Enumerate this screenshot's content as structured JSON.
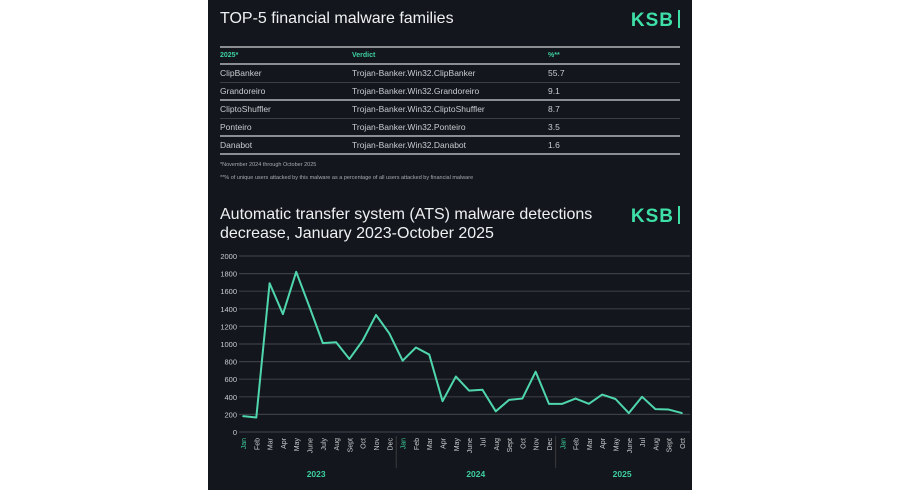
{
  "table_section": {
    "title": "TOP-5 financial malware families",
    "logo": "KSB",
    "headers": [
      "2025*",
      "Verdict",
      "%**"
    ],
    "rows": [
      [
        "ClipBanker",
        "Trojan-Banker.Win32.ClipBanker",
        "55.7"
      ],
      [
        "Grandoreiro",
        "Trojan-Banker.Win32.Grandoreiro",
        "9.1"
      ],
      [
        "CliptoShuffler",
        "Trojan-Banker.Win32.CliptoShuffler",
        "8.7"
      ],
      [
        "Ponteiro",
        "Trojan-Banker.Win32.Ponteiro",
        "3.5"
      ],
      [
        "Danabot",
        "Trojan-Banker.Win32.Danabot",
        "1.6"
      ]
    ],
    "footnotes": [
      "*November 2024 through October 2025",
      "**% of unique users attacked by this malware as a percentage of all users attacked by financial malware"
    ]
  },
  "chart_section": {
    "title_line1": "Automatic transfer system (ATS) malware detections",
    "title_line2": "decrease, January 2023-October 2025",
    "logo": "KSB"
  },
  "chart_data": {
    "type": "line",
    "title": "Automatic transfer system (ATS) malware detections decrease, January 2023-October 2025",
    "ylim": [
      0,
      2000
    ],
    "yticks": [
      0,
      200,
      400,
      600,
      800,
      1000,
      1200,
      1400,
      1600,
      1800,
      2000
    ],
    "grid": true,
    "line_color": "#4fd6ad",
    "accent_color": "#3ecfa0",
    "years": [
      {
        "label": "2023",
        "months": 12
      },
      {
        "label": "2024",
        "months": 12
      },
      {
        "label": "2025",
        "months": 10
      }
    ],
    "categories": [
      "Jan",
      "Feb",
      "Mar",
      "Apr",
      "May",
      "June",
      "July",
      "Aug",
      "Sept",
      "Oct",
      "Nov",
      "Dec",
      "Jan",
      "Feb",
      "Mar",
      "Apr",
      "May",
      "June",
      "Jul",
      "Aug",
      "Sept",
      "Oct",
      "Nov",
      "Dec",
      "Jan",
      "Feb",
      "Mar",
      "Apr",
      "May",
      "June",
      "Jul",
      "Aug",
      "Sept",
      "Oct"
    ],
    "values": [
      180,
      165,
      1690,
      1340,
      1820,
      1420,
      1010,
      1020,
      830,
      1040,
      1330,
      1120,
      810,
      960,
      880,
      350,
      630,
      470,
      480,
      235,
      365,
      380,
      685,
      320,
      320,
      380,
      320,
      425,
      375,
      215,
      400,
      260,
      255,
      215
    ]
  }
}
